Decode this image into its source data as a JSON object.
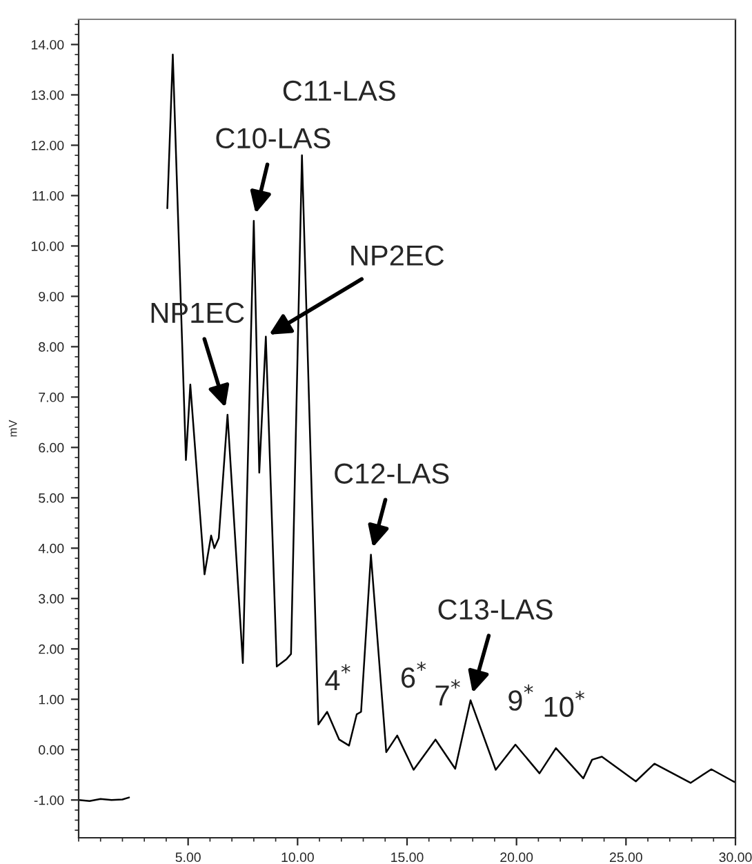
{
  "chart_data": {
    "type": "line",
    "ylabel": "mV",
    "x": [
      0,
      0.5,
      1.0,
      1.5,
      2.0,
      2.3,
      2.4,
      3.0,
      3.9,
      4.05,
      4.3,
      4.9,
      5.1,
      5.75,
      6.05,
      6.2,
      6.4,
      6.8,
      7.5,
      8.0,
      8.25,
      8.55,
      9.05,
      9.5,
      9.7,
      10.2,
      10.95,
      11.35,
      11.9,
      12.35,
      12.7,
      12.9,
      13.35,
      14.05,
      14.55,
      15.3,
      16.3,
      17.2,
      17.9,
      19.05,
      19.95,
      21.05,
      21.8,
      23.05,
      23.45,
      23.9,
      25.45,
      26.3,
      27.95,
      28.9,
      29.9,
      30
    ],
    "series": [
      {
        "color": "#000000",
        "values": [
          -1.0,
          -1.02,
          -0.98,
          -1.0,
          -0.99,
          -0.95,
          null,
          null,
          null,
          10.75,
          13.8,
          5.75,
          7.25,
          3.48,
          4.25,
          4.0,
          4.2,
          6.65,
          1.72,
          10.5,
          5.5,
          8.2,
          1.65,
          1.8,
          1.9,
          11.8,
          0.5,
          0.75,
          0.2,
          0.08,
          0.7,
          0.75,
          3.87,
          -0.05,
          0.28,
          -0.4,
          0.2,
          -0.38,
          0.98,
          -0.4,
          0.1,
          -0.47,
          0.03,
          -0.57,
          -0.2,
          -0.14,
          -0.63,
          -0.28,
          -0.66,
          -0.39,
          -0.63,
          -0.65
        ]
      }
    ],
    "xlim": [
      0,
      30
    ],
    "ylim": [
      -1.75,
      14.5
    ],
    "xticks": [
      {
        "value": 5,
        "label": "5.00"
      },
      {
        "value": 10,
        "label": "10.00"
      },
      {
        "value": 15,
        "label": "15.00"
      },
      {
        "value": 20,
        "label": "20.00"
      },
      {
        "value": 25,
        "label": "25.00"
      },
      {
        "value": 30,
        "label": "30.00"
      }
    ],
    "yticks": [
      {
        "value": -1,
        "label": "-1.00"
      },
      {
        "value": 0,
        "label": "0.00"
      },
      {
        "value": 1,
        "label": "1.00"
      },
      {
        "value": 2,
        "label": "2.00"
      },
      {
        "value": 3,
        "label": "3.00"
      },
      {
        "value": 4,
        "label": "4.00"
      },
      {
        "value": 5,
        "label": "5.00"
      },
      {
        "value": 6,
        "label": "6.00"
      },
      {
        "value": 7,
        "label": "7.00"
      },
      {
        "value": 8,
        "label": "8.00"
      },
      {
        "value": 9,
        "label": "9.00"
      },
      {
        "value": 10,
        "label": "10.00"
      },
      {
        "value": 11,
        "label": "11.00"
      },
      {
        "value": 12,
        "label": "12.00"
      },
      {
        "value": 13,
        "label": "13.00"
      },
      {
        "value": 14,
        "label": "14.00"
      }
    ],
    "grid": false,
    "marker": "none",
    "line_style": "solid",
    "annotations": [
      {
        "text": "C11-LAS",
        "x": 10.2,
        "y": 11.8
      },
      {
        "text": "C10-LAS",
        "x": 8.0,
        "y": 10.5
      },
      {
        "text": "NP2EC",
        "x": 8.55,
        "y": 8.2
      },
      {
        "text": "NP1EC",
        "x": 6.8,
        "y": 6.65
      },
      {
        "text": "C12-LAS",
        "x": 13.35,
        "y": 3.87
      },
      {
        "text": "C13-LAS",
        "x": 17.9,
        "y": 0.98
      },
      {
        "text": "4$^{*}$",
        "x": 11.35,
        "y": 0.75
      },
      {
        "text": "6$^{*}$",
        "x": 14.55,
        "y": 0.28
      },
      {
        "text": "7$^{*}$",
        "x": 16.3,
        "y": 0.2
      },
      {
        "text": "9$^{*}$",
        "x": 19.95,
        "y": 0.1
      },
      {
        "text": "10$^{*}$",
        "x": 21.8,
        "y": 0.03
      }
    ]
  }
}
